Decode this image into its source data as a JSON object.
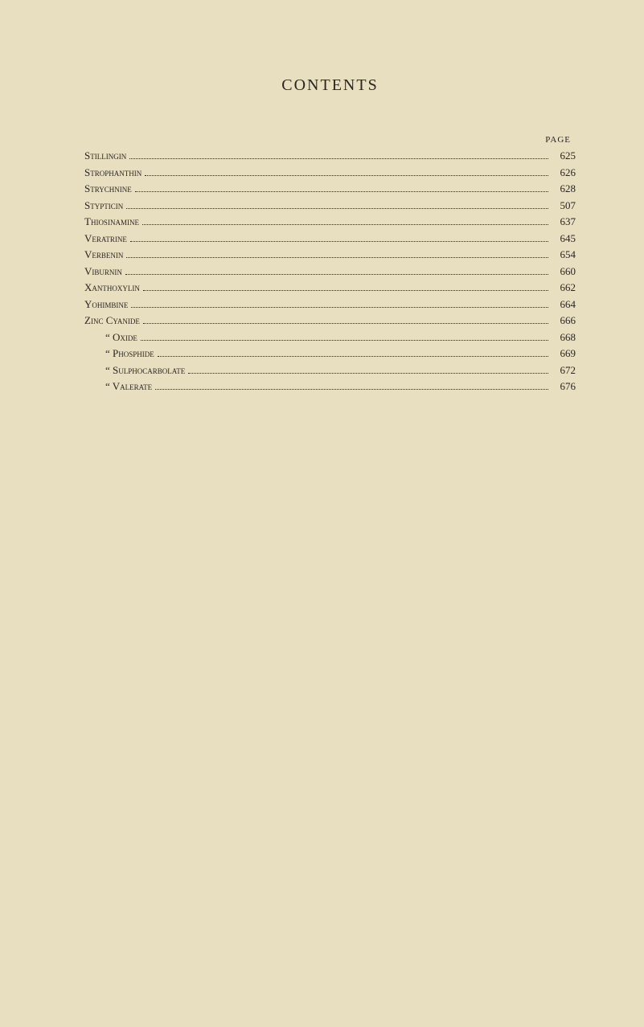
{
  "title": "CONTENTS",
  "page_header": "PAGE",
  "entries": [
    {
      "label": "Stillingin",
      "page": "625",
      "indent": false
    },
    {
      "label": "Strophanthin",
      "page": "626",
      "indent": false
    },
    {
      "label": "Strychnine",
      "page": "628",
      "indent": false
    },
    {
      "label": "Stypticin",
      "page": "507",
      "indent": false
    },
    {
      "label": "Thiosinamine",
      "page": "637",
      "indent": false
    },
    {
      "label": "Veratrine",
      "page": "645",
      "indent": false
    },
    {
      "label": "Verbenin",
      "page": "654",
      "indent": false
    },
    {
      "label": "Viburnin",
      "page": "660",
      "indent": false
    },
    {
      "label": "Xanthoxylin",
      "page": "662",
      "indent": false
    },
    {
      "label": "Yohimbine",
      "page": "664",
      "indent": false
    },
    {
      "label": "Zinc Cyanide",
      "page": "666",
      "indent": false
    },
    {
      "label": "“   Oxide",
      "page": "668",
      "indent": true
    },
    {
      "label": "“   Phosphide",
      "page": "669",
      "indent": true
    },
    {
      "label": "“   Sulphocarbolate",
      "page": "672",
      "indent": true
    },
    {
      "label": "“   Valerate",
      "page": "676",
      "indent": true
    }
  ],
  "colors": {
    "background": "#e8dfc0",
    "text": "#2a2520"
  },
  "typography": {
    "title_fontsize": 20,
    "body_fontsize": 13,
    "header_fontsize": 11
  }
}
